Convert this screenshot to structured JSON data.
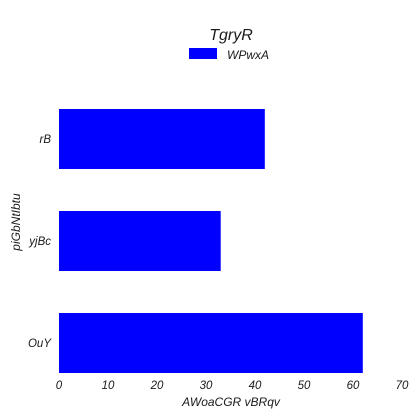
{
  "chart_data": {
    "type": "bar",
    "orientation": "horizontal",
    "title": "TgryR",
    "xlabel": "AWoaCGR  vBRqv",
    "ylabel": "piGbNtIbtu",
    "categories": [
      "OuY",
      "yjBc",
      "rB"
    ],
    "series": [
      {
        "name": "WPwxA",
        "values": [
          62,
          33,
          42
        ],
        "color": "#0000ff"
      }
    ],
    "xlim": [
      0,
      70
    ],
    "xticks": [
      0,
      10,
      20,
      30,
      40,
      50,
      60,
      70
    ],
    "grid": false,
    "legend_position": "top-center"
  }
}
